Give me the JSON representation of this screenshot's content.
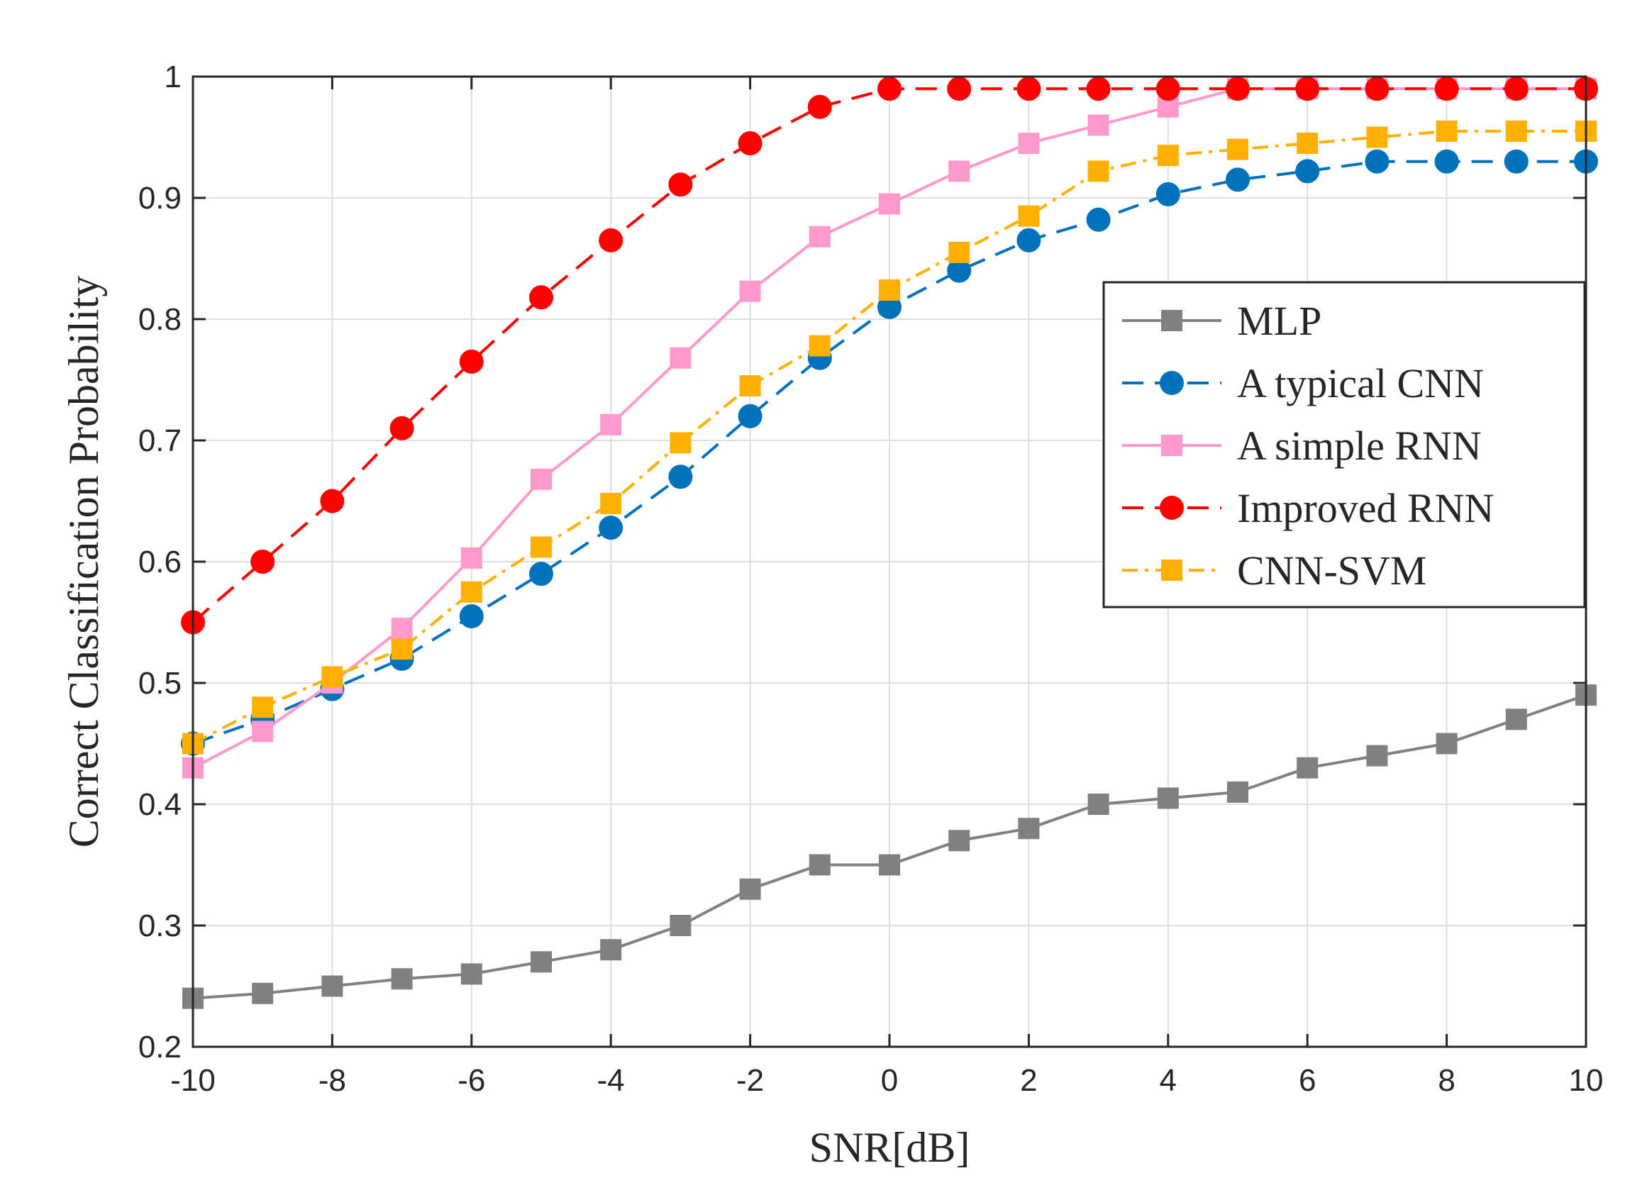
{
  "chart_data": {
    "type": "line",
    "title": "",
    "xlabel": "SNR[dB]",
    "ylabel": "Correct Classification Probability",
    "x": [
      -10,
      -9,
      -8,
      -7,
      -6,
      -5,
      -4,
      -3,
      -2,
      -1,
      0,
      1,
      2,
      3,
      4,
      5,
      6,
      7,
      8,
      9,
      10
    ],
    "xlim": [
      -10,
      10
    ],
    "ylim": [
      0.2,
      1
    ],
    "xticks": [
      -10,
      -8,
      -6,
      -4,
      -2,
      0,
      2,
      4,
      6,
      8,
      10
    ],
    "xtick_labels": [
      "-10",
      "-8",
      "-6",
      "-4",
      "-2",
      "0",
      "2",
      "4",
      "6",
      "8",
      "10"
    ],
    "yticks": [
      0.2,
      0.3,
      0.4,
      0.5,
      0.6,
      0.7,
      0.8,
      0.9,
      1
    ],
    "ytick_labels": [
      "0.2",
      "0.3",
      "0.4",
      "0.5",
      "0.6",
      "0.7",
      "0.8",
      "0.9",
      "1"
    ],
    "grid": true,
    "legend_position": "right",
    "series": [
      {
        "name": "MLP",
        "color": "#808080",
        "line_style": "solid",
        "marker": "square",
        "values": [
          0.24,
          0.244,
          0.25,
          0.256,
          0.26,
          0.27,
          0.28,
          0.3,
          0.33,
          0.35,
          0.35,
          0.37,
          0.38,
          0.4,
          0.405,
          0.41,
          0.43,
          0.44,
          0.45,
          0.47,
          0.49
        ]
      },
      {
        "name": "A typical CNN",
        "color": "#0072BD",
        "line_style": "dashed",
        "marker": "circle",
        "values": [
          0.45,
          0.47,
          0.495,
          0.52,
          0.555,
          0.59,
          0.628,
          0.67,
          0.72,
          0.768,
          0.81,
          0.84,
          0.865,
          0.882,
          0.903,
          0.915,
          0.922,
          0.93,
          0.93,
          0.93,
          0.93
        ]
      },
      {
        "name": "A simple RNN",
        "color": "#FF99CC",
        "line_style": "solid",
        "marker": "square",
        "values": [
          0.43,
          0.46,
          0.5,
          0.545,
          0.603,
          0.668,
          0.713,
          0.768,
          0.823,
          0.868,
          0.895,
          0.922,
          0.945,
          0.96,
          0.975,
          0.99,
          0.99,
          0.99,
          0.99,
          0.99,
          0.99
        ]
      },
      {
        "name": "Improved RNN",
        "color": "#FF0000",
        "line_style": "dashed",
        "marker": "circle",
        "values": [
          0.55,
          0.6,
          0.65,
          0.71,
          0.765,
          0.818,
          0.865,
          0.911,
          0.945,
          0.975,
          0.99,
          0.99,
          0.99,
          0.99,
          0.99,
          0.99,
          0.99,
          0.99,
          0.99,
          0.99,
          0.99
        ]
      },
      {
        "name": "CNN-SVM",
        "color": "#FFB000",
        "line_style": "dashdot",
        "marker": "square",
        "values": [
          0.45,
          0.48,
          0.505,
          0.528,
          0.575,
          0.612,
          0.648,
          0.698,
          0.745,
          0.778,
          0.824,
          0.855,
          0.885,
          0.922,
          0.935,
          0.94,
          0.945,
          0.95,
          0.955,
          0.955,
          0.955
        ]
      }
    ]
  }
}
